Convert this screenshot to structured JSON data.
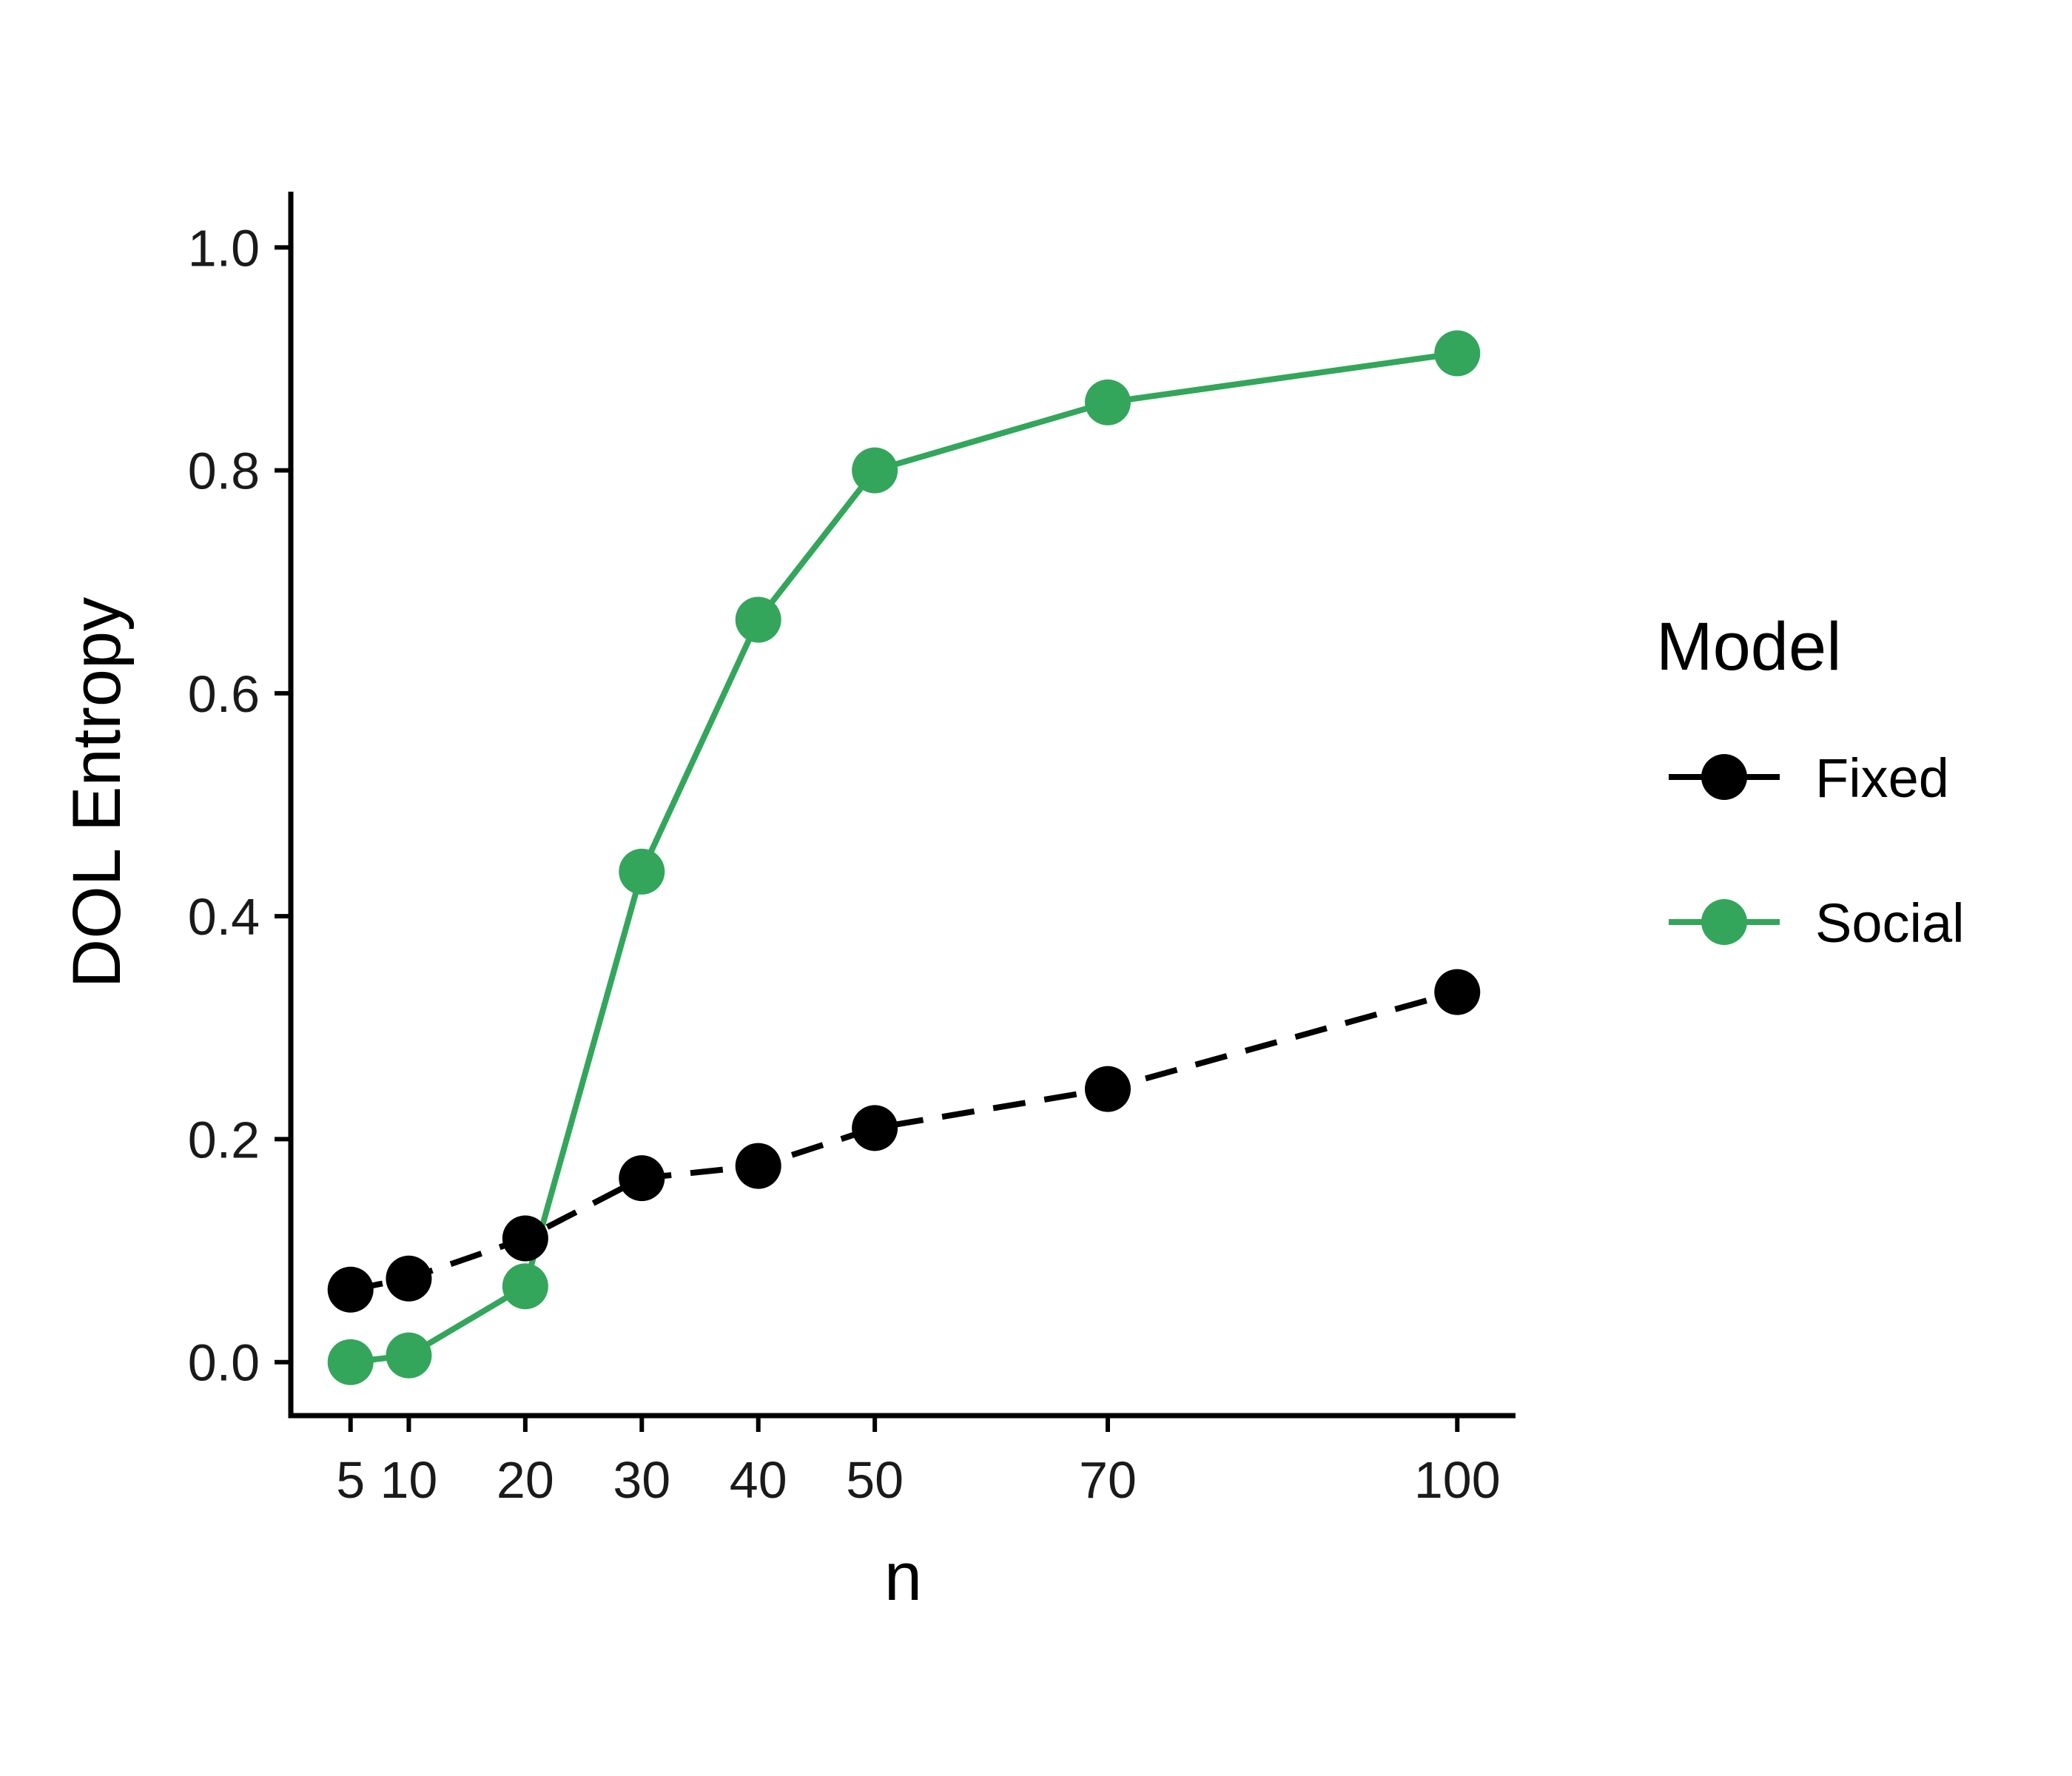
{
  "chart_data": {
    "type": "line",
    "xlabel": "n",
    "ylabel": "DOL Entropy",
    "xlim": [
      0,
      105
    ],
    "ylim": [
      -0.048,
      1.05
    ],
    "x_ticks": [
      5,
      10,
      20,
      30,
      40,
      50,
      70,
      100
    ],
    "x_tick_labels": [
      "5",
      "10",
      "20",
      "30",
      "40",
      "50",
      "70",
      "100"
    ],
    "y_ticks": [
      0.0,
      0.2,
      0.4,
      0.6,
      0.8,
      1.0
    ],
    "y_tick_labels": [
      "0.0",
      "0.2",
      "0.4",
      "0.6",
      "0.8",
      "1.0"
    ],
    "grid": false,
    "legend": {
      "title": "Model",
      "placement": "right"
    },
    "x": [
      5,
      10,
      20,
      30,
      40,
      50,
      70,
      100
    ],
    "series": [
      {
        "name": "Fixed",
        "color": "#000000",
        "line_style": "dashed",
        "values": [
          0.065,
          0.075,
          0.111,
          0.165,
          0.176,
          0.21,
          0.245,
          0.332
        ]
      },
      {
        "name": "Social",
        "color": "#33a65c",
        "line_style": "solid",
        "values": [
          0.0,
          0.006,
          0.068,
          0.44,
          0.666,
          0.8,
          0.861,
          0.905
        ]
      }
    ]
  }
}
